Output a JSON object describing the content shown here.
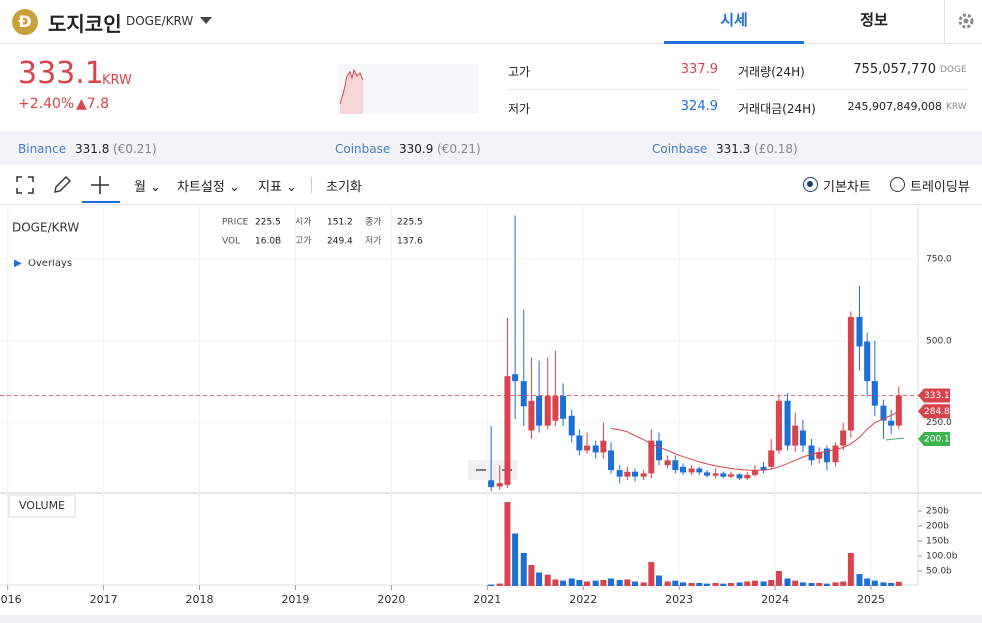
{
  "header": {
    "coin_name": "도지코인",
    "pair": "DOGE/KRW",
    "tabs": [
      "시세",
      "정보"
    ]
  },
  "price": {
    "value": "333.1",
    "unit": "KRW",
    "change_pct": "+2.40%",
    "change": "▲7.8"
  },
  "stats": [
    {
      "label": "고가",
      "value": "337.9"
    },
    {
      "label": "저가",
      "value": "324.9"
    },
    {
      "label": "거래량(24H)",
      "value": "755,057,770",
      "unit": "DOGE"
    },
    {
      "label": "거래대금(24H)",
      "value": "245,907,849,008",
      "unit": "KRW"
    }
  ],
  "exchanges": [
    {
      "name": "Binance",
      "price": "331.8",
      "ref": "(€0.21)"
    },
    {
      "name": "Coinbase",
      "price": "330.9",
      "ref": "(€0.21)"
    },
    {
      "name": "Coinbase",
      "price": "331.3",
      "ref": "(£0.18)"
    }
  ],
  "toolbar": {
    "items": [
      "월",
      "차트설정",
      "지표",
      "초기화"
    ],
    "options": [
      "기본차트",
      "트레이딩뷰"
    ]
  },
  "chart_data": {
    "type": "candlestick",
    "title": "DOGE/KRW",
    "overlays": "Overlays",
    "info": [
      {
        "label": "PRICE",
        "value": "225.5"
      },
      {
        "label": "시가",
        "value": "151.2"
      },
      {
        "label": "종가",
        "value": "225.5"
      },
      {
        "label": "VOL",
        "value": "16.0B"
      },
      {
        "label": "고가",
        "value": "249.4"
      },
      {
        "label": "저가",
        "value": "137.6"
      }
    ],
    "up_color": "#d9434b",
    "down_color": "#1d6fd6",
    "x": [
      2021.04,
      2021.13,
      2021.21,
      2021.29,
      2021.38,
      2021.46,
      2021.54,
      2021.63,
      2021.71,
      2021.79,
      2021.88,
      2021.96,
      2022.04,
      2022.13,
      2022.21,
      2022.29,
      2022.38,
      2022.46,
      2022.54,
      2022.63,
      2022.71,
      2022.79,
      2022.88,
      2022.96,
      2023.04,
      2023.13,
      2023.21,
      2023.29,
      2023.38,
      2023.46,
      2023.54,
      2023.63,
      2023.71,
      2023.79,
      2023.88,
      2023.96,
      2024.04,
      2024.13,
      2024.21,
      2024.29,
      2024.38,
      2024.46,
      2024.54,
      2024.63,
      2024.71,
      2024.79,
      2024.88,
      2024.96,
      2025.04,
      2025.13,
      2025.21,
      2025.29
    ],
    "open": [
      74,
      55,
      60,
      398,
      377,
      226,
      332,
      241,
      256,
      332,
      271,
      211,
      165,
      180,
      159,
      165,
      105,
      85,
      100,
      85,
      95,
      195,
      120,
      135,
      115,
      98,
      110,
      98,
      88,
      95,
      85,
      92,
      80,
      90,
      115,
      115,
      165,
      317,
      180,
      226,
      180,
      140,
      171,
      129,
      180,
      226,
      573,
      498,
      377,
      302,
      256,
      241
    ],
    "high": [
      240,
      120,
      570,
      883,
      595,
      450,
      440,
      450,
      470,
      370,
      290,
      230,
      220,
      195,
      250,
      190,
      120,
      115,
      110,
      105,
      230,
      220,
      150,
      150,
      125,
      120,
      115,
      105,
      110,
      100,
      100,
      95,
      100,
      120,
      130,
      200,
      335,
      340,
      280,
      260,
      200,
      175,
      180,
      190,
      250,
      590,
      668,
      525,
      500,
      320,
      290,
      360
    ],
    "low": [
      40,
      45,
      50,
      260,
      240,
      200,
      220,
      230,
      240,
      240,
      190,
      150,
      155,
      140,
      140,
      95,
      65,
      75,
      70,
      75,
      80,
      120,
      110,
      95,
      90,
      90,
      90,
      82,
      80,
      80,
      80,
      75,
      75,
      85,
      95,
      110,
      155,
      165,
      160,
      160,
      120,
      125,
      105,
      115,
      165,
      205,
      410,
      330,
      270,
      200,
      215,
      230
    ],
    "close": [
      53,
      65,
      392,
      377,
      300,
      317,
      241,
      332,
      332,
      262,
      211,
      165,
      180,
      159,
      195,
      105,
      85,
      100,
      85,
      95,
      195,
      135,
      135,
      105,
      98,
      110,
      98,
      88,
      95,
      85,
      92,
      80,
      90,
      105,
      105,
      165,
      317,
      180,
      241,
      180,
      135,
      160,
      129,
      180,
      226,
      573,
      483,
      377,
      302,
      256,
      241,
      333.1
    ],
    "ma": {
      "color": "#d9434b",
      "values": [
        null,
        null,
        null,
        null,
        null,
        null,
        null,
        null,
        null,
        null,
        null,
        null,
        null,
        null,
        null,
        232,
        228,
        222,
        210,
        198,
        185,
        175,
        165,
        155,
        146,
        138,
        130,
        124,
        118,
        114,
        110,
        107,
        105,
        104,
        105,
        108,
        115,
        125,
        135,
        145,
        153,
        158,
        163,
        168,
        174,
        185,
        205,
        230,
        250,
        262,
        272,
        284.8
      ]
    },
    "markers": [
      {
        "value": 200.1,
        "color": "#3fb34f"
      }
    ],
    "xlim": [
      2015.92,
      2025.49
    ],
    "xticks": [
      2016,
      2017,
      2018,
      2019,
      2020,
      2021,
      2022,
      2023,
      2024,
      2025
    ],
    "ylim": [
      35,
      900
    ],
    "yticks": [
      {
        "value": 250,
        "label": "250.0"
      },
      {
        "value": 500,
        "label": "500.0"
      },
      {
        "value": 750,
        "label": "750.0"
      }
    ],
    "volume": {
      "label": "VOLUME",
      "values": [
        5,
        8,
        280,
        175,
        110,
        70,
        45,
        38,
        22,
        18,
        25,
        20,
        15,
        18,
        20,
        25,
        20,
        22,
        15,
        12,
        80,
        35,
        15,
        18,
        12,
        10,
        10,
        8,
        10,
        8,
        10,
        12,
        15,
        18,
        15,
        20,
        50,
        25,
        18,
        12,
        10,
        10,
        8,
        12,
        15,
        110,
        40,
        25,
        18,
        12,
        10,
        14
      ],
      "ylim": [
        0,
        310
      ],
      "yticks": [
        {
          "value": 50,
          "label": "50.0b"
        },
        {
          "value": 100,
          "label": "100.0b"
        },
        {
          "value": 150,
          "label": "150b"
        },
        {
          "value": 200,
          "label": "200b"
        },
        {
          "value": 250,
          "label": "250b"
        }
      ]
    }
  }
}
